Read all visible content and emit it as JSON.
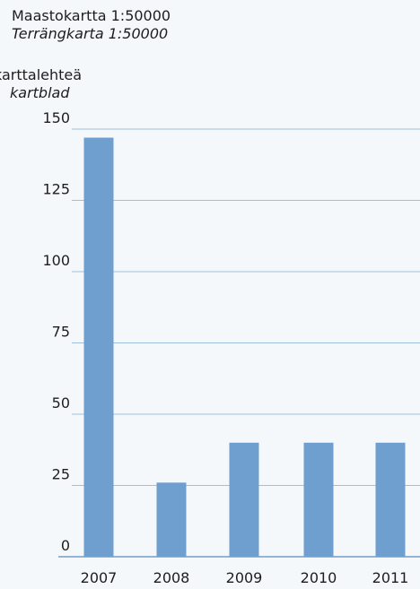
{
  "title": {
    "fi": "Maastokartta 1:50000",
    "sv": "Terrängkarta 1:50000"
  },
  "unit": {
    "fi": "karttalehteä",
    "sv": "kartblad"
  },
  "colors": {
    "bar": "#6f9fcf",
    "grid": "#9ec0de",
    "background": "#f5f8fb"
  },
  "chart_data": {
    "type": "bar",
    "categories": [
      "2007",
      "2008",
      "2009",
      "2010",
      "2011"
    ],
    "values": [
      147,
      26,
      40,
      40,
      40
    ],
    "ylabel": "karttalehteä / kartblad",
    "ylim": [
      0,
      150
    ],
    "yticks": [
      0,
      25,
      50,
      75,
      100,
      125,
      150
    ],
    "grid": true,
    "legend": "none"
  }
}
